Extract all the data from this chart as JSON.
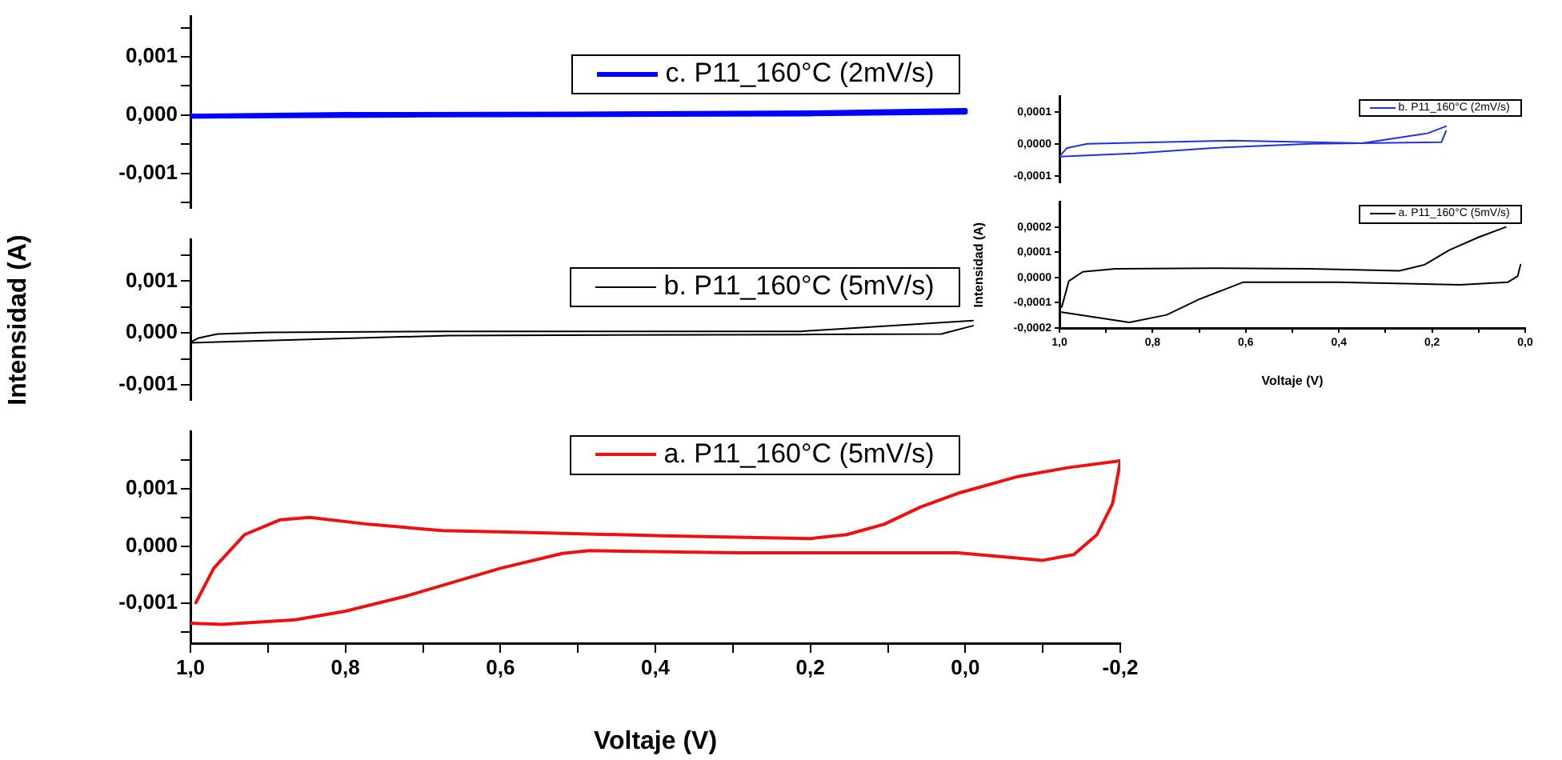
{
  "chart_data": [
    {
      "type": "line",
      "legend": "top right",
      "tick_labels": "y",
      "series": [
        {
          "name": "c. P11_160°C (2mV/s)",
          "color": "#0000ff",
          "x": [
            1.0,
            0.7,
            0.4,
            0.2,
            0.0
          ],
          "values": [
            -2e-05,
            0.0,
            1e-05,
            2e-05,
            5e-05
          ]
        },
        {
          "color": "#0000ff",
          "x": [
            0.0,
            0.2,
            0.5,
            0.8,
            1.0
          ],
          "values": [
            8e-05,
            4e-05,
            2e-05,
            1e-05,
            -2e-05
          ]
        }
      ],
      "xlim": [
        1.0,
        -0.2
      ],
      "ylim": [
        -0.0016,
        0.0017
      ],
      "yticks": [
        {
          "value": -0.0015,
          "label": null
        },
        {
          "value": -0.001,
          "label": "-0,001"
        },
        {
          "value": -0.0005,
          "label": null
        },
        {
          "value": 0,
          "label": "0,000"
        },
        {
          "value": 0.0005,
          "label": null
        },
        {
          "value": 0.001,
          "label": "0,001"
        },
        {
          "value": 0.0015,
          "label": null
        }
      ]
    },
    {
      "type": "line",
      "legend": "top right",
      "tick_labels": "y",
      "ylabel": "Intensidad (A)",
      "series": [
        {
          "name": "b. P11_160°C (5mV/s)",
          "color": "#000000",
          "x": [
            1.0,
            0.99,
            0.965,
            0.9,
            0.667,
            0.213,
            -0.01
          ],
          "values": [
            -0.00018,
            -0.0001,
            -2e-05,
            1e-05,
            3e-05,
            3e-05,
            0.00024
          ]
        },
        {
          "color": "#000000",
          "x": [
            -0.01,
            0.031,
            0.213,
            0.667,
            1.0
          ],
          "values": [
            0.00014,
            -2e-05,
            -3e-05,
            -5e-05,
            -0.00019
          ]
        }
      ],
      "xlim": [
        1.0,
        -0.2
      ],
      "ylim": [
        -0.0013,
        0.0018
      ],
      "yticks": [
        {
          "value": -0.001,
          "label": "-0,001"
        },
        {
          "value": -0.0005,
          "label": null
        },
        {
          "value": 0,
          "label": "0,000"
        },
        {
          "value": 0.0005,
          "label": null
        },
        {
          "value": 0.001,
          "label": "0,001"
        },
        {
          "value": 0.0015,
          "label": null
        }
      ]
    },
    {
      "type": "line",
      "legend": "top right",
      "xlabel": "Voltaje (V)",
      "series": [
        {
          "name": "a. P11_160°C (5mV/s)",
          "color": "#ee1111",
          "x": [
            1.0,
            0.96,
            0.865,
            0.8,
            0.72,
            0.6,
            0.52,
            0.485,
            0.295,
            0.01,
            -0.066,
            -0.1,
            -0.14,
            -0.17,
            -0.19,
            -0.198,
            -0.2
          ],
          "values": [
            -0.00135,
            -0.00137,
            -0.00129,
            -0.00114,
            -0.00087,
            -0.00039,
            -0.00013,
            -8e-05,
            -0.00012,
            -0.00012,
            -0.00021,
            -0.00025,
            -0.00015,
            0.0002,
            0.00074,
            0.00133,
            0.00149
          ]
        },
        {
          "color": "#ee1111",
          "x": [
            -0.2,
            -0.132,
            -0.066,
            0.01,
            0.058,
            0.105,
            0.153,
            0.2,
            0.39,
            0.58,
            0.675,
            0.77,
            0.846,
            0.884,
            0.93,
            0.97,
            0.993
          ],
          "values": [
            0.00149,
            0.00137,
            0.00121,
            0.00092,
            0.00068,
            0.00038,
            0.0002,
            0.00013,
            0.00018,
            0.00024,
            0.00027,
            0.00038,
            0.0005,
            0.00046,
            0.0002,
            -0.00039,
            -0.00099
          ]
        }
      ],
      "xlim": [
        1.0,
        -0.2
      ],
      "ylim": [
        -0.0017,
        0.002
      ],
      "xticks": [
        {
          "value": 1.0,
          "label": "1,0"
        },
        {
          "value": 0.9,
          "label": null
        },
        {
          "value": 0.8,
          "label": "0,8"
        },
        {
          "value": 0.7,
          "label": null
        },
        {
          "value": 0.6,
          "label": "0,6"
        },
        {
          "value": 0.5,
          "label": null
        },
        {
          "value": 0.4,
          "label": "0,4"
        },
        {
          "value": 0.3,
          "label": null
        },
        {
          "value": 0.2,
          "label": "0,2"
        },
        {
          "value": 0.1,
          "label": null
        },
        {
          "value": 0.0,
          "label": "0,0"
        },
        {
          "value": -0.1,
          "label": null
        },
        {
          "value": -0.2,
          "label": "-0,2"
        }
      ],
      "yticks": [
        {
          "value": -0.0015,
          "label": null
        },
        {
          "value": -0.001,
          "label": "-0,001"
        },
        {
          "value": -0.0005,
          "label": null
        },
        {
          "value": 0,
          "label": "0,000"
        },
        {
          "value": 0.0005,
          "label": null
        },
        {
          "value": 0.001,
          "label": "0,001"
        },
        {
          "value": 0.0015,
          "label": null
        }
      ]
    },
    {
      "type": "line",
      "legend": "top right",
      "tick_labels": "y",
      "series": [
        {
          "name": "b. P11_160°C (2mV/s)",
          "color": "#2233dd",
          "x": [
            1.0,
            0.984,
            0.94,
            0.63,
            0.35,
            0.21,
            0.17
          ],
          "values": [
            -4e-05,
            -1.3e-05,
            0.0,
            1e-05,
            2e-06,
            3.3e-05,
            5.5e-05
          ]
        },
        {
          "color": "#2233dd",
          "x": [
            0.17,
            0.18,
            0.46,
            0.67,
            0.84,
            1.0
          ],
          "values": [
            4e-05,
            5e-06,
            0.0,
            -1.3e-05,
            -3e-05,
            -4e-05
          ]
        }
      ],
      "xlim": [
        1.0,
        0.0
      ],
      "ylim": [
        -0.00012,
        0.00015
      ],
      "yticks": [
        {
          "value": -0.0001,
          "label": "-0,0001"
        },
        {
          "value": 0,
          "label": "0,0000"
        },
        {
          "value": 0.0001,
          "label": "0,0001"
        }
      ]
    },
    {
      "type": "line",
      "legend": "top right",
      "xlabel": "Voltaje (V)",
      "ylabel": "Intensidad (A)",
      "series": [
        {
          "name": "a. P11_160°C (5mV/s)",
          "color": "#000000",
          "x": [
            0.995,
            0.85,
            0.77,
            0.7,
            0.605,
            0.405,
            0.14,
            0.037,
            0.016,
            0.01
          ],
          "values": [
            -0.000137,
            -0.000178,
            -0.000148,
            -8.6e-05,
            -1.8e-05,
            -1.8e-05,
            -2.9e-05,
            -1.8e-05,
            6e-06,
            5.1e-05
          ]
        },
        {
          "color": "#000000",
          "x": [
            0.042,
            0.1,
            0.163,
            0.216,
            0.27,
            0.46,
            0.67,
            0.88,
            0.95,
            0.98,
            0.995
          ],
          "values": [
            0.0002,
            0.00016,
            0.000109,
            5.1e-05,
            2.7e-05,
            3.5e-05,
            3.7e-05,
            3.5e-05,
            2.3e-05,
            -1.4e-05,
            -0.000117
          ]
        }
      ],
      "xlim": [
        1.0,
        0.0
      ],
      "ylim": [
        -0.0002,
        0.0003
      ],
      "xticks": [
        {
          "value": 1.0,
          "label": "1,0"
        },
        {
          "value": 0.9,
          "label": null
        },
        {
          "value": 0.8,
          "label": "0,8"
        },
        {
          "value": 0.7,
          "label": null
        },
        {
          "value": 0.6,
          "label": "0,6"
        },
        {
          "value": 0.5,
          "label": null
        },
        {
          "value": 0.4,
          "label": "0,4"
        },
        {
          "value": 0.3,
          "label": null
        },
        {
          "value": 0.2,
          "label": "0,2"
        },
        {
          "value": 0.1,
          "label": null
        },
        {
          "value": 0.0,
          "label": "0,0"
        }
      ],
      "yticks": [
        {
          "value": -0.0002,
          "label": "-0,0002"
        },
        {
          "value": -0.0001,
          "label": "-0,0001"
        },
        {
          "value": 0,
          "label": "0,0000"
        },
        {
          "value": 0.0001,
          "label": "0,0001"
        },
        {
          "value": 0.0002,
          "label": "0,0002"
        }
      ]
    }
  ]
}
